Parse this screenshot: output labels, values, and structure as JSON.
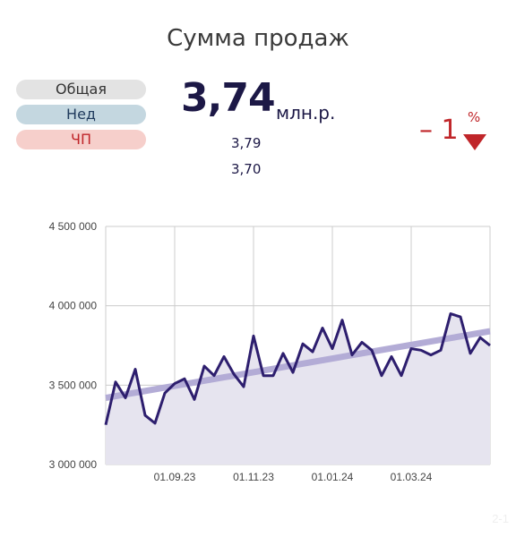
{
  "header": {
    "title": "Сумма продаж"
  },
  "legend_pills": {
    "all": "Общая",
    "week": "Нед",
    "pe": "ЧП"
  },
  "kpi": {
    "value": "3,74",
    "unit": "млн.р.",
    "week_value": "3,79",
    "pe_value": "3,70",
    "delta_value": "– 1",
    "delta_unit": "%",
    "delta_direction": "down",
    "delta_color": "#c0262a"
  },
  "corner_label": "2-1",
  "chart_data": {
    "type": "line",
    "ylim": [
      3000000,
      4500000
    ],
    "y_ticks": [
      3000000,
      3500000,
      4000000,
      4500000
    ],
    "y_tick_labels": [
      "3 000 000",
      "3 500 000",
      "4 000 000",
      "4 500 000"
    ],
    "x_tick_labels": [
      "01.09.23",
      "01.11.23",
      "01.01.24",
      "01.03.24"
    ],
    "x_tick_positions": [
      7,
      15,
      23,
      31
    ],
    "grid": true,
    "series": [
      {
        "values": [
          3250000,
          3520000,
          3420000,
          3600000,
          3310000,
          3260000,
          3450000,
          3510000,
          3540000,
          3410000,
          3620000,
          3560000,
          3680000,
          3570000,
          3490000,
          3810000,
          3560000,
          3560000,
          3700000,
          3580000,
          3760000,
          3710000,
          3860000,
          3730000,
          3910000,
          3690000,
          3770000,
          3720000,
          3560000,
          3680000,
          3560000,
          3730000,
          3720000,
          3690000,
          3720000,
          3950000,
          3930000,
          3700000,
          3800000,
          3750000
        ],
        "color": "#2d1e6e"
      }
    ],
    "trend": {
      "start": 3420000,
      "end": 3840000,
      "color": "#b3acd6"
    },
    "area_color": "#e6e4ef"
  }
}
